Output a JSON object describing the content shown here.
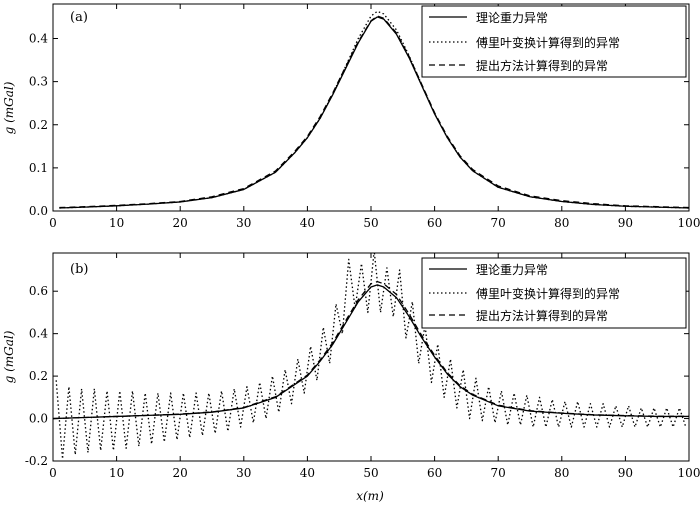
{
  "chart_data": [
    {
      "type": "line",
      "panel_label": "(a)",
      "ylabel": "g (mGal)",
      "xlabel": "",
      "xlim": [
        0,
        100
      ],
      "ylim": [
        0,
        0.48
      ],
      "xticks": [
        0,
        10,
        20,
        30,
        40,
        50,
        60,
        70,
        80,
        90,
        100
      ],
      "yticks": [
        0.0,
        0.1,
        0.2,
        0.3,
        0.4
      ],
      "ytick_labels": [
        "0.0",
        "0.1",
        "0.2",
        "0.3",
        "0.4"
      ],
      "legend_position": "top-right",
      "series": [
        {
          "name": "理论重力异常",
          "style": "solid",
          "x": [
            1,
            5,
            10,
            15,
            20,
            25,
            30,
            35,
            38,
            40,
            42,
            44,
            46,
            48,
            50,
            51,
            52,
            54,
            56,
            58,
            60,
            62,
            64,
            66,
            70,
            75,
            80,
            85,
            90,
            95,
            100
          ],
          "values": [
            0.007,
            0.009,
            0.012,
            0.016,
            0.021,
            0.031,
            0.05,
            0.09,
            0.135,
            0.17,
            0.215,
            0.27,
            0.33,
            0.39,
            0.44,
            0.45,
            0.445,
            0.41,
            0.355,
            0.29,
            0.225,
            0.17,
            0.125,
            0.093,
            0.055,
            0.033,
            0.022,
            0.015,
            0.011,
            0.009,
            0.007
          ]
        },
        {
          "name": "傅里叶变换计算得到的异常",
          "style": "dotted",
          "x": [
            1,
            5,
            10,
            15,
            20,
            25,
            30,
            35,
            38,
            40,
            42,
            44,
            46,
            48,
            50,
            51,
            52,
            54,
            56,
            58,
            60,
            62,
            64,
            66,
            70,
            75,
            80,
            85,
            90,
            95,
            100
          ],
          "values": [
            0.007,
            0.009,
            0.012,
            0.016,
            0.021,
            0.031,
            0.05,
            0.09,
            0.135,
            0.17,
            0.215,
            0.272,
            0.335,
            0.4,
            0.452,
            0.463,
            0.457,
            0.42,
            0.36,
            0.292,
            0.226,
            0.17,
            0.125,
            0.093,
            0.055,
            0.033,
            0.022,
            0.015,
            0.011,
            0.009,
            0.007
          ]
        },
        {
          "name": "提出方法计算得到的异常",
          "style": "dashed",
          "x": [
            1,
            5,
            10,
            15,
            20,
            25,
            30,
            35,
            38,
            40,
            42,
            44,
            46,
            48,
            50,
            51,
            52,
            54,
            56,
            58,
            60,
            62,
            64,
            66,
            70,
            75,
            80,
            85,
            90,
            95,
            100
          ],
          "values": [
            0.008,
            0.01,
            0.013,
            0.017,
            0.022,
            0.033,
            0.052,
            0.093,
            0.138,
            0.173,
            0.219,
            0.274,
            0.334,
            0.393,
            0.441,
            0.452,
            0.447,
            0.413,
            0.358,
            0.293,
            0.228,
            0.173,
            0.128,
            0.096,
            0.058,
            0.035,
            0.024,
            0.017,
            0.012,
            0.01,
            0.008
          ]
        }
      ]
    },
    {
      "type": "line",
      "panel_label": "(b)",
      "ylabel": "g (mGal)",
      "xlabel": "x(m)",
      "xlim": [
        0,
        100
      ],
      "ylim": [
        -0.2,
        0.78
      ],
      "xticks": [
        0,
        10,
        20,
        30,
        40,
        50,
        60,
        70,
        80,
        90,
        100
      ],
      "yticks": [
        -0.2,
        0.0,
        0.2,
        0.4,
        0.6
      ],
      "ytick_labels": [
        "-0.2",
        "0.0",
        "0.2",
        "0.4",
        "0.6"
      ],
      "legend_position": "top-right",
      "series": [
        {
          "name": "理论重力异常",
          "style": "solid",
          "x": [
            0,
            5,
            10,
            15,
            20,
            25,
            30,
            35,
            38,
            40,
            42,
            44,
            46,
            48,
            50,
            51,
            52,
            54,
            56,
            58,
            60,
            62,
            64,
            66,
            70,
            75,
            80,
            85,
            90,
            95,
            100
          ],
          "values": [
            0.0,
            0.005,
            0.01,
            0.015,
            0.02,
            0.03,
            0.05,
            0.1,
            0.16,
            0.2,
            0.27,
            0.35,
            0.45,
            0.55,
            0.62,
            0.63,
            0.62,
            0.57,
            0.48,
            0.38,
            0.29,
            0.21,
            0.15,
            0.11,
            0.06,
            0.035,
            0.025,
            0.017,
            0.013,
            0.01,
            0.01
          ]
        },
        {
          "name": "傅里叶变换计算得到的异常",
          "style": "dotted",
          "x": [
            0.5,
            1.5,
            2.5,
            3.5,
            4.5,
            5.5,
            6.5,
            7.5,
            8.5,
            9.5,
            10.5,
            11.5,
            12.5,
            13.5,
            14.5,
            15.5,
            16.5,
            17.5,
            18.5,
            19.5,
            20.5,
            21.5,
            22.5,
            23.5,
            24.5,
            25.5,
            26.5,
            27.5,
            28.5,
            29.5,
            30.5,
            31.5,
            32.5,
            33.5,
            34.5,
            35.5,
            36.5,
            37.5,
            38.5,
            39.5,
            40.5,
            41.5,
            42.5,
            43.5,
            44.5,
            45.5,
            46.5,
            47.5,
            48.5,
            49.5,
            50.5,
            51.5,
            52.5,
            53.5,
            54.5,
            55.5,
            56.5,
            57.5,
            58.5,
            59.5,
            60.5,
            61.5,
            62.5,
            63.5,
            64.5,
            65.5,
            66.5,
            67.5,
            68.5,
            69.5,
            70.5,
            71.5,
            72.5,
            73.5,
            74.5,
            75.5,
            76.5,
            77.5,
            78.5,
            79.5,
            80.5,
            81.5,
            82.5,
            83.5,
            84.5,
            85.5,
            86.5,
            87.5,
            88.5,
            89.5,
            90.5,
            91.5,
            92.5,
            93.5,
            94.5,
            95.5,
            96.5,
            97.5,
            98.5,
            99.5
          ],
          "values": [
            0.18,
            -0.19,
            0.15,
            -0.17,
            0.14,
            -0.16,
            0.14,
            -0.15,
            0.13,
            -0.15,
            0.13,
            -0.14,
            0.13,
            -0.13,
            0.12,
            -0.12,
            0.12,
            -0.11,
            0.12,
            -0.1,
            0.12,
            -0.09,
            0.12,
            -0.08,
            0.12,
            -0.07,
            0.13,
            -0.06,
            0.14,
            -0.04,
            0.15,
            -0.02,
            0.17,
            0.0,
            0.2,
            0.03,
            0.23,
            0.07,
            0.28,
            0.12,
            0.34,
            0.18,
            0.43,
            0.26,
            0.54,
            0.4,
            0.75,
            0.52,
            0.73,
            0.5,
            0.79,
            0.5,
            0.71,
            0.48,
            0.7,
            0.38,
            0.55,
            0.26,
            0.44,
            0.17,
            0.35,
            0.1,
            0.28,
            0.05,
            0.23,
            0.0,
            0.19,
            -0.01,
            0.15,
            -0.02,
            0.13,
            -0.03,
            0.12,
            -0.03,
            0.11,
            -0.04,
            0.1,
            -0.04,
            0.09,
            -0.04,
            0.08,
            -0.04,
            0.08,
            -0.04,
            0.07,
            -0.04,
            0.07,
            -0.04,
            0.06,
            -0.04,
            0.06,
            -0.04,
            0.05,
            -0.04,
            0.05,
            -0.04,
            0.05,
            -0.04,
            0.05,
            -0.04
          ]
        },
        {
          "name": "提出方法计算得到的异常",
          "style": "dashed",
          "x": [
            0,
            5,
            10,
            15,
            20,
            25,
            30,
            35,
            38,
            40,
            42,
            44,
            46,
            48,
            50,
            51,
            52,
            54,
            56,
            58,
            60,
            62,
            64,
            66,
            70,
            75,
            80,
            85,
            90,
            95,
            100
          ],
          "values": [
            0.0,
            0.005,
            0.01,
            0.015,
            0.021,
            0.031,
            0.052,
            0.103,
            0.164,
            0.205,
            0.276,
            0.358,
            0.46,
            0.56,
            0.635,
            0.645,
            0.635,
            0.585,
            0.492,
            0.39,
            0.298,
            0.216,
            0.155,
            0.114,
            0.063,
            0.037,
            0.026,
            0.018,
            0.014,
            0.011,
            0.011
          ]
        }
      ]
    }
  ]
}
